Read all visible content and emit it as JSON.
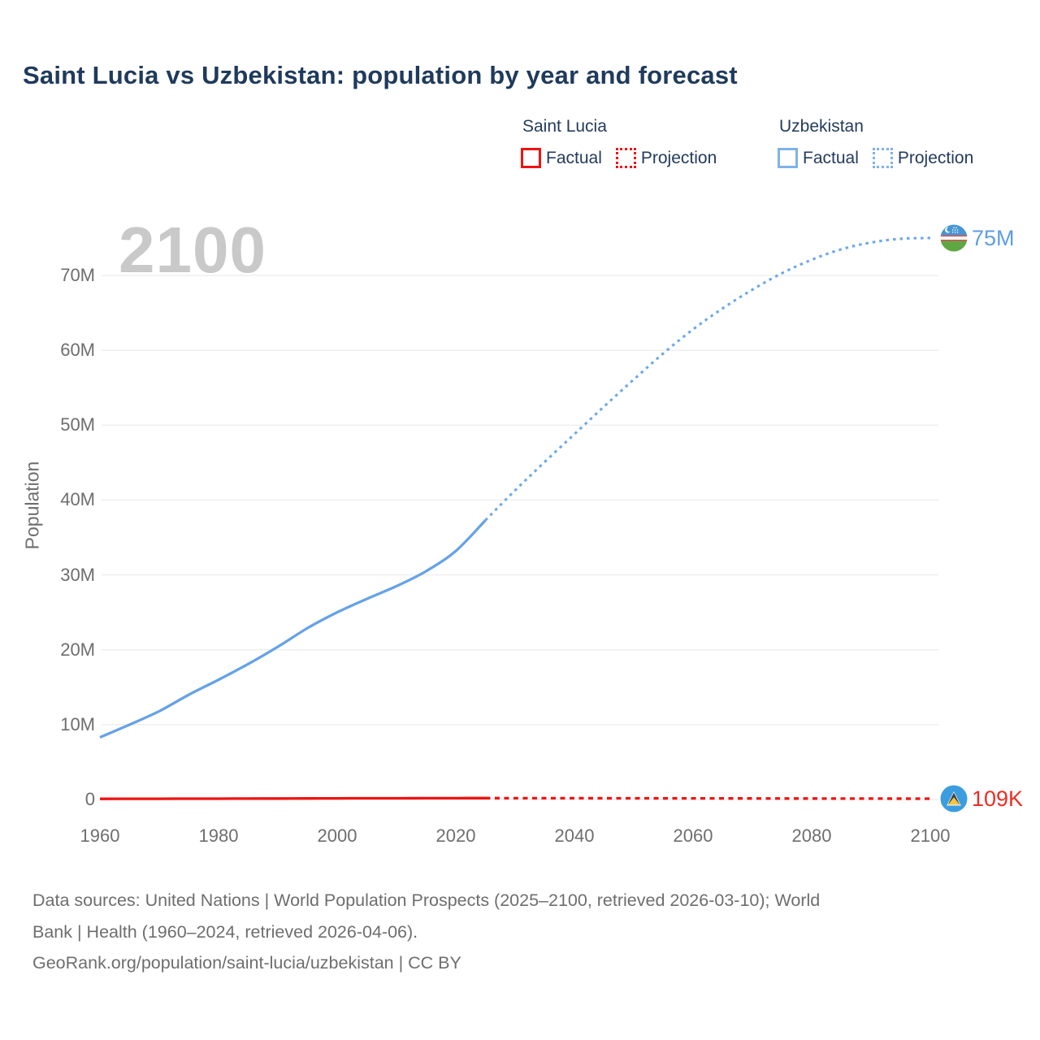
{
  "title": "Saint Lucia vs Uzbekistan: population by year and forecast",
  "watermark": "2100",
  "legend": {
    "groups": [
      {
        "name": "Saint Lucia",
        "color": "#ee1412",
        "items": [
          {
            "label": "Factual",
            "style": "solid"
          },
          {
            "label": "Projection",
            "style": "dotted"
          }
        ]
      },
      {
        "name": "Uzbekistan",
        "color": "#7fb2ea",
        "items": [
          {
            "label": "Factual",
            "style": "solid"
          },
          {
            "label": "Projection",
            "style": "dotted"
          }
        ]
      }
    ]
  },
  "chart_data": {
    "type": "line",
    "title": "Saint Lucia vs Uzbekistan: population by year and forecast",
    "xlabel": "",
    "ylabel": "Population",
    "unit": "millions of people",
    "xlim": [
      1960,
      2100
    ],
    "ylim": [
      0,
      75
    ],
    "grid": "horizontal",
    "legend_position": "top-right",
    "x_ticks": [
      1960,
      1980,
      2000,
      2020,
      2040,
      2060,
      2080,
      2100
    ],
    "y_ticks": [
      0,
      10,
      20,
      30,
      40,
      50,
      60,
      70
    ],
    "y_tick_labels": [
      "0",
      "10M",
      "20M",
      "30M",
      "40M",
      "50M",
      "60M",
      "70M"
    ],
    "series": [
      {
        "name": "Uzbekistan (factual)",
        "color": "#66a2e6",
        "dash": "solid",
        "width": 3.3,
        "points": [
          [
            1960,
            8.3
          ],
          [
            1965,
            10.0
          ],
          [
            1970,
            11.8
          ],
          [
            1975,
            14.0
          ],
          [
            1980,
            16.0
          ],
          [
            1985,
            18.1
          ],
          [
            1990,
            20.4
          ],
          [
            1995,
            22.9
          ],
          [
            2000,
            25.0
          ],
          [
            2005,
            26.8
          ],
          [
            2010,
            28.5
          ],
          [
            2015,
            30.5
          ],
          [
            2020,
            33.2
          ],
          [
            2025,
            37.3
          ]
        ]
      },
      {
        "name": "Uzbekistan (projection)",
        "color": "#6ea8e8",
        "dash": "dotted",
        "dash_pattern": "3.5 5",
        "width": 3.1,
        "points": [
          [
            2025,
            37.3
          ],
          [
            2030,
            41.3
          ],
          [
            2035,
            45.1
          ],
          [
            2040,
            48.8
          ],
          [
            2045,
            52.5
          ],
          [
            2050,
            56.1
          ],
          [
            2055,
            59.6
          ],
          [
            2060,
            62.8
          ],
          [
            2065,
            65.6
          ],
          [
            2070,
            68.1
          ],
          [
            2075,
            70.3
          ],
          [
            2080,
            72.1
          ],
          [
            2085,
            73.5
          ],
          [
            2090,
            74.4
          ],
          [
            2095,
            74.9
          ],
          [
            2100,
            75.0
          ]
        ]
      },
      {
        "name": "Saint Lucia (factual)",
        "color": "#ee1412",
        "dash": "solid",
        "width": 3.3,
        "points": [
          [
            1960,
            0.089
          ],
          [
            1965,
            0.096
          ],
          [
            1970,
            0.102
          ],
          [
            1975,
            0.108
          ],
          [
            1980,
            0.113
          ],
          [
            1985,
            0.123
          ],
          [
            1990,
            0.135
          ],
          [
            1995,
            0.146
          ],
          [
            2000,
            0.156
          ],
          [
            2005,
            0.162
          ],
          [
            2010,
            0.166
          ],
          [
            2015,
            0.173
          ],
          [
            2020,
            0.178
          ],
          [
            2025,
            0.18
          ]
        ]
      },
      {
        "name": "Saint Lucia (projection)",
        "color": "#ee1412",
        "dash": "dotted",
        "dash_pattern": "6 5.5",
        "width": 3.3,
        "points": [
          [
            2025,
            0.18
          ],
          [
            2030,
            0.179
          ],
          [
            2040,
            0.173
          ],
          [
            2050,
            0.163
          ],
          [
            2060,
            0.151
          ],
          [
            2070,
            0.139
          ],
          [
            2080,
            0.128
          ],
          [
            2090,
            0.118
          ],
          [
            2100,
            0.109
          ]
        ]
      }
    ],
    "end_markers": [
      {
        "series": "Uzbekistan",
        "flag": "uzbekistan",
        "year": 2100,
        "value": 75.0,
        "label": "75M",
        "color": "#5d9ee2"
      },
      {
        "series": "Saint Lucia",
        "flag": "saint-lucia",
        "year": 2100,
        "value": 0.109,
        "label": "109K",
        "color": "#ed2d24"
      }
    ]
  },
  "footer": {
    "line1": "Data sources: United Nations | World Population Prospects (2025–2100, retrieved 2026-03-10); World",
    "line2": "Bank | Health (1960–2024, retrieved 2026-04-06).",
    "line3": "GeoRank.org/population/saint-lucia/uzbekistan | CC BY"
  }
}
